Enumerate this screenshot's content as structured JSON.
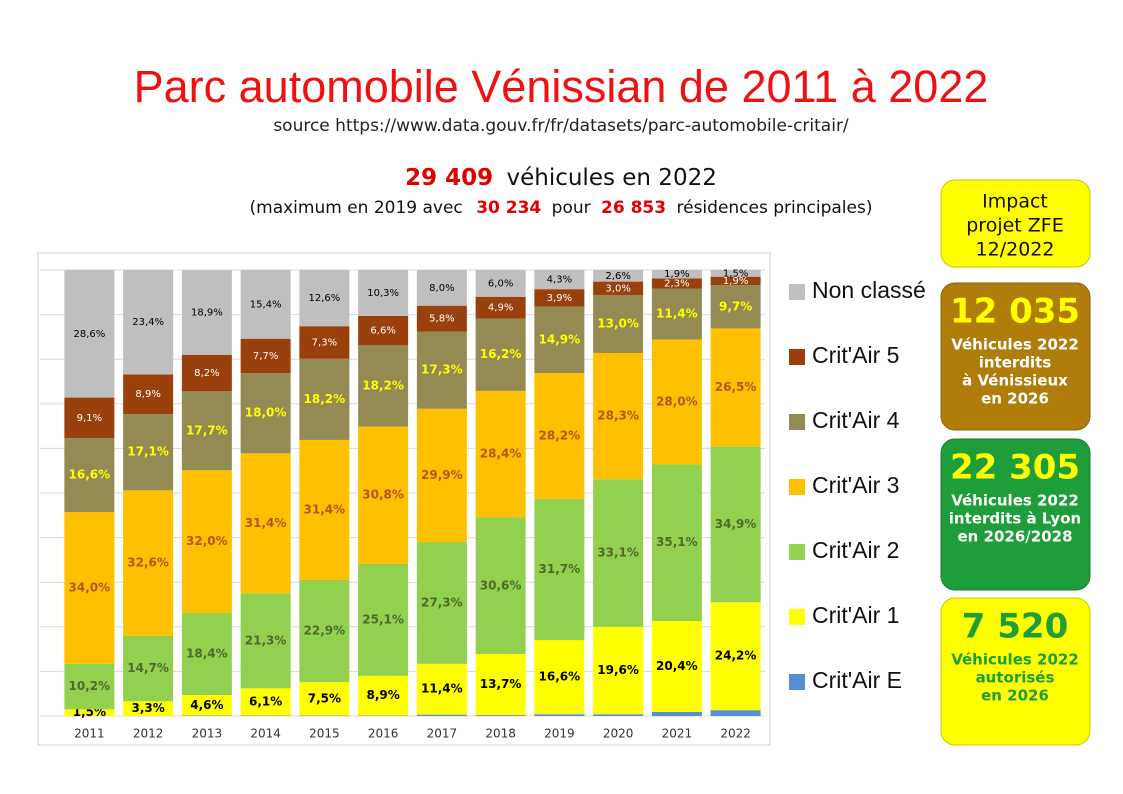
{
  "chart_data": {
    "type": "stacked_bar_percent",
    "title": "Parc automobile Vénissian de 2011 à 2022",
    "source": "source https://www.data.gouv.fr/fr/datasets/parc-automobile-critair/",
    "headline": {
      "count": "29 409",
      "text": "véhicules en 2022"
    },
    "subtitle": {
      "a": "(maximum en 2019 avec",
      "b": "30 234",
      "c": "pour",
      "d": "26 853",
      "e": "résidences principales)"
    },
    "categories": [
      "2011",
      "2012",
      "2013",
      "2014",
      "2015",
      "2016",
      "2017",
      "2018",
      "2019",
      "2020",
      "2021",
      "2022"
    ],
    "ylim": [
      0,
      100
    ],
    "yticks": [
      0,
      10,
      20,
      30,
      40,
      50,
      60,
      70,
      80,
      90,
      100
    ],
    "grid": true,
    "legend": "right",
    "series": [
      {
        "name": "Crit'Air E",
        "color": "#558ed5",
        "values": [
          0,
          0,
          0.1,
          0.1,
          0.1,
          0.1,
          0.3,
          0.2,
          0.4,
          0.4,
          0.9,
          1.3
        ]
      },
      {
        "name": "Crit'Air 1",
        "color": "#ffff00",
        "label_color": "#000000",
        "values": [
          1.5,
          3.3,
          4.6,
          6.1,
          7.5,
          8.9,
          11.4,
          13.7,
          16.6,
          19.6,
          20.4,
          24.2
        ],
        "value_labels": [
          "1,5%",
          "3,3%",
          "4,6%",
          "6,1%",
          "7,5%",
          "8,9%",
          "11,4%",
          "13,7%",
          "16,6%",
          "19,6%",
          "20,4%",
          "24,2%"
        ]
      },
      {
        "name": "Crit'Air 2",
        "color": "#92d050",
        "label_color": "#4f6a2c",
        "values": [
          10.2,
          14.7,
          18.4,
          21.3,
          22.9,
          25.1,
          27.3,
          30.6,
          31.7,
          33.1,
          35.1,
          34.9
        ],
        "value_labels": [
          "10,2%",
          "14,7%",
          "18,4%",
          "21,3%",
          "22,9%",
          "25,1%",
          "27,3%",
          "30,6%",
          "31,7%",
          "33,1%",
          "35,1%",
          "34,9%"
        ]
      },
      {
        "name": "Crit'Air 3",
        "color": "#ffc000",
        "label_color": "#b5541c",
        "values": [
          34.0,
          32.6,
          32.0,
          31.4,
          31.4,
          30.8,
          29.9,
          28.4,
          28.2,
          28.3,
          28.0,
          26.5
        ],
        "value_labels": [
          "34,0%",
          "32,6%",
          "32,0%",
          "31,4%",
          "31,4%",
          "30,8%",
          "29,9%",
          "28,4%",
          "28,2%",
          "28,3%",
          "28,0%",
          "26,5%"
        ]
      },
      {
        "name": "Crit'Air 4",
        "color": "#948a54",
        "label_color": "#ffff00",
        "values": [
          16.6,
          17.1,
          17.7,
          18.0,
          18.2,
          18.2,
          17.3,
          16.2,
          14.9,
          13.0,
          11.4,
          9.7
        ],
        "value_labels": [
          "16,6%",
          "17,1%",
          "17,7%",
          "18,0%",
          "18,2%",
          "18,2%",
          "17,3%",
          "16,2%",
          "14,9%",
          "13,0%",
          "11,4%",
          "9,7%"
        ]
      },
      {
        "name": "Crit'Air 5",
        "color": "#99400d",
        "label_color": "#ffffff",
        "values": [
          9.1,
          8.9,
          8.2,
          7.7,
          7.3,
          6.6,
          5.8,
          4.9,
          3.9,
          3.0,
          2.3,
          1.9
        ],
        "value_labels": [
          "9,1%",
          "8,9%",
          "8,2%",
          "7,7%",
          "7,3%",
          "6,6%",
          "5,8%",
          "4,9%",
          "3,9%",
          "3,0%",
          "2,3%",
          "1,9%"
        ]
      },
      {
        "name": "Non classé",
        "color": "#bfbfbf",
        "label_color": "#000000",
        "values": [
          28.6,
          23.4,
          18.9,
          15.4,
          12.6,
          10.3,
          8.0,
          6.0,
          4.3,
          2.6,
          1.9,
          1.5
        ],
        "value_labels": [
          "28,6%",
          "23,4%",
          "18,9%",
          "15,4%",
          "12,6%",
          "10,3%",
          "8,0%",
          "6,0%",
          "4,3%",
          "2,6%",
          "1,9%",
          "1,5%"
        ]
      }
    ],
    "panels": [
      {
        "lines": [
          "Impact",
          "projet ZFE",
          "12/2022"
        ]
      },
      {
        "number": "12 035",
        "lines": [
          "Véhicules 2022",
          "interdits",
          "à Vénissieux",
          "en 2026"
        ]
      },
      {
        "number": "22 305",
        "lines": [
          "Véhicules 2022",
          "interdits à Lyon",
          "en 2026/2028"
        ]
      },
      {
        "number": "7 520",
        "lines": [
          "Véhicules 2022",
          "autorisés",
          "en 2026"
        ]
      }
    ]
  }
}
